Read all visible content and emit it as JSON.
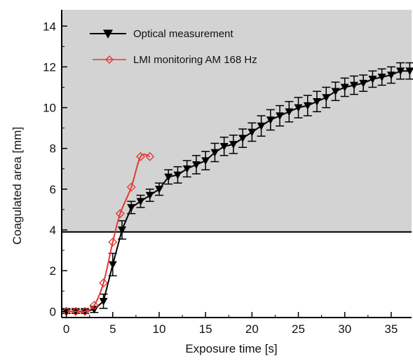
{
  "chart_data": {
    "type": "line",
    "title": "",
    "xlabel": "Exposure time [s]",
    "ylabel": "Coagulated area [mm]",
    "xlim": [
      -0.5,
      37.2
    ],
    "ylim": [
      -0.3,
      14.8
    ],
    "xticks": [
      0,
      5,
      10,
      15,
      20,
      25,
      30,
      35
    ],
    "yticks": [
      0,
      2,
      4,
      6,
      8,
      10,
      12,
      14
    ],
    "grid": false,
    "legend_position": "top-left",
    "shaded_region": {
      "y_from": 3.9,
      "color": "#d3d3d3"
    },
    "series": [
      {
        "name": "Optical measurement",
        "color": "#000000",
        "marker": "filled-down-triangle",
        "x": [
          0,
          1,
          2,
          3,
          4,
          5,
          6,
          7,
          8,
          9,
          10,
          11,
          12,
          13,
          14,
          15,
          16,
          17,
          18,
          19,
          20,
          21,
          22,
          23,
          24,
          25,
          26,
          27,
          28,
          29,
          30,
          31,
          32,
          33,
          34,
          35,
          36,
          37
        ],
        "y": [
          0.0,
          0.0,
          0.0,
          0.1,
          0.5,
          2.3,
          4.0,
          5.1,
          5.4,
          5.7,
          6.0,
          6.6,
          6.7,
          7.0,
          7.2,
          7.4,
          7.8,
          8.1,
          8.2,
          8.5,
          8.8,
          9.1,
          9.4,
          9.6,
          9.8,
          10.0,
          10.1,
          10.3,
          10.5,
          10.8,
          11.0,
          11.1,
          11.2,
          11.4,
          11.5,
          11.6,
          11.8,
          11.8
        ],
        "error": [
          0.1,
          0.1,
          0.1,
          0.15,
          0.35,
          0.55,
          0.45,
          0.3,
          0.3,
          0.3,
          0.3,
          0.35,
          0.4,
          0.4,
          0.45,
          0.45,
          0.45,
          0.45,
          0.45,
          0.45,
          0.45,
          0.5,
          0.5,
          0.5,
          0.5,
          0.5,
          0.5,
          0.5,
          0.5,
          0.45,
          0.45,
          0.45,
          0.4,
          0.4,
          0.4,
          0.4,
          0.4,
          0.4
        ]
      },
      {
        "name": "LMI monitoring AM 168 Hz",
        "color": "#e53935",
        "marker": "open-diamond",
        "x": [
          0,
          1,
          2,
          3,
          4,
          5,
          5.8,
          7,
          8,
          9
        ],
        "y": [
          0.0,
          0.0,
          0.0,
          0.3,
          1.4,
          3.4,
          4.8,
          6.1,
          7.6,
          7.6
        ]
      }
    ]
  }
}
